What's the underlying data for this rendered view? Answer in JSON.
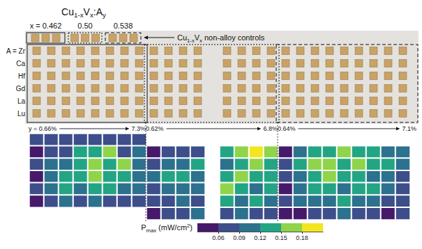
{
  "photo": {
    "title": [
      {
        "text": "Cu"
      },
      {
        "text": "1-x",
        "sub": true
      },
      {
        "text": "V"
      },
      {
        "text": "x",
        "sub": true
      },
      {
        "text": ":A"
      },
      {
        "text": "y",
        "sub": true
      }
    ],
    "controls_label": [
      {
        "text": "Cu"
      },
      {
        "text": "1-x",
        "sub": true
      },
      {
        "text": "V"
      },
      {
        "text": "x",
        "sub": true
      },
      {
        "text": " non-alloy controls"
      }
    ],
    "compositions": [
      {
        "label": "x = 0.462",
        "controls": 3,
        "y_from": "y = 0.66%",
        "y_to": "7.3%"
      },
      {
        "label": "0.50",
        "controls": 3,
        "y_from": "0.62%",
        "y_to": "6.8%"
      },
      {
        "label": "0.538",
        "controls": 3,
        "y_from": "0.64%",
        "y_to": "7.1%"
      }
    ],
    "dopants": [
      "A = Zr",
      "Ca",
      "Hf",
      "Gd",
      "La",
      "Lu"
    ]
  },
  "chart_data": {
    "type": "heatmap",
    "tick_labels": false,
    "cells": [
      [
        0.08,
        0.08,
        0.08,
        0.08,
        0.08,
        0.08,
        0.08,
        0.08,
        null,
        null,
        null,
        null,
        null,
        null,
        null,
        null,
        null,
        null,
        null,
        null,
        null,
        null,
        null,
        null,
        null,
        null
      ],
      [
        0.05,
        0.08,
        0.08,
        0.13,
        0.13,
        0.16,
        0.08,
        0.1,
        0.05,
        0.08,
        0.08,
        0.08,
        null,
        0.13,
        0.16,
        0.19,
        0.16,
        0.05,
        0.1,
        0.13,
        0.13,
        0.16,
        0.13,
        0.13,
        0.1,
        0.1
      ],
      [
        0.08,
        0.1,
        0.1,
        0.13,
        0.16,
        0.13,
        0.16,
        0.1,
        0.08,
        0.1,
        0.1,
        0.13,
        null,
        0.1,
        0.13,
        0.16,
        0.13,
        0.08,
        0.13,
        0.16,
        0.16,
        0.13,
        0.16,
        0.13,
        0.13,
        0.1
      ],
      [
        0.05,
        0.1,
        0.13,
        0.13,
        0.16,
        0.13,
        0.13,
        0.1,
        0.1,
        0.13,
        0.13,
        0.1,
        null,
        0.13,
        0.16,
        0.13,
        0.13,
        0.08,
        0.1,
        0.13,
        0.16,
        0.13,
        0.13,
        0.1,
        0.1,
        0.08
      ],
      [
        0.08,
        0.1,
        0.13,
        0.1,
        0.13,
        0.13,
        0.1,
        0.1,
        0.08,
        0.1,
        0.1,
        0.1,
        null,
        0.16,
        0.13,
        0.1,
        0.13,
        0.05,
        0.1,
        0.13,
        0.13,
        0.1,
        0.13,
        0.13,
        0.1,
        0.08
      ],
      [
        0.05,
        0.08,
        0.1,
        0.08,
        0.1,
        0.08,
        0.08,
        0.08,
        0.08,
        0.08,
        0.1,
        0.08,
        null,
        0.13,
        0.1,
        0.13,
        0.1,
        0.08,
        0.1,
        0.1,
        0.1,
        0.13,
        0.1,
        0.1,
        0.08,
        0.08
      ],
      [
        null,
        null,
        null,
        null,
        null,
        null,
        null,
        null,
        0.05,
        0.08,
        0.08,
        0.1,
        null,
        0.08,
        0.1,
        0.08,
        0.08,
        0.05,
        0.05,
        0.08,
        0.08,
        0.1,
        0.08,
        0.08,
        0.05,
        0.08
      ]
    ],
    "colorbar": {
      "label": [
        {
          "text": "P"
        },
        {
          "text": "max",
          "sub": true
        },
        {
          "text": " (mW/cm"
        },
        {
          "text": "2",
          "sup": true
        },
        {
          "text": ")"
        }
      ],
      "range": [
        0.03,
        0.21
      ],
      "ticks": [
        0.06,
        0.09,
        0.12,
        0.15,
        0.18
      ],
      "bins": [
        0.03,
        0.06,
        0.09,
        0.12,
        0.15,
        0.18,
        0.21
      ],
      "colors": [
        "#46196b",
        "#3d4e8a",
        "#2c718e",
        "#23a584",
        "#8fd44a",
        "#f4e61e"
      ]
    }
  }
}
